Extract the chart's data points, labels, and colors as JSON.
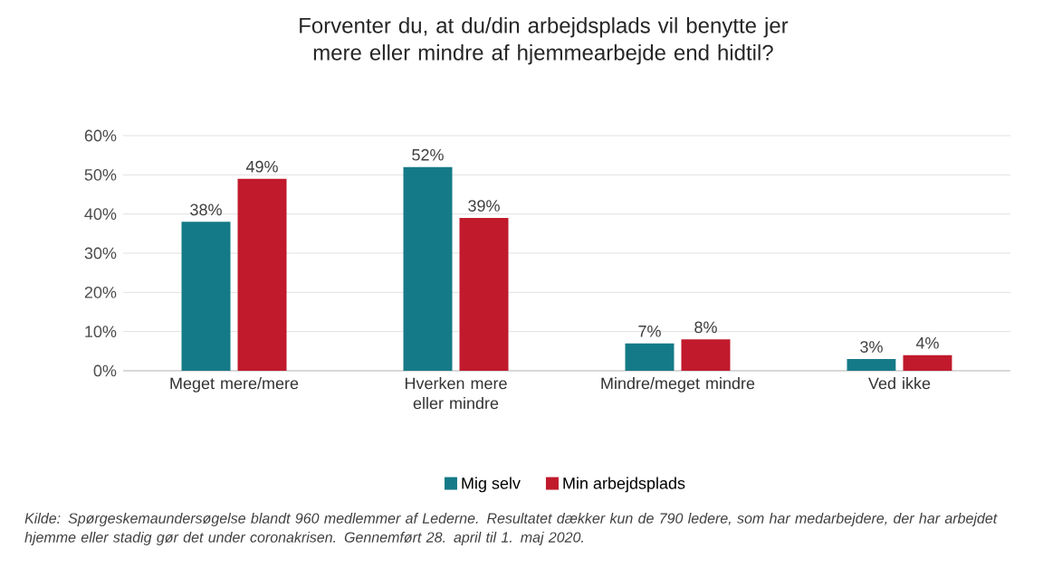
{
  "chart_data": {
    "type": "bar",
    "title": "Forventer du, at du/din arbejdsplads vil benytte jer mere eller mindre af hjemmearbejde end hidtil?",
    "categories": [
      "Meget mere/mere",
      "Hverken mere eller mindre",
      "Mindre/meget mindre",
      "Ved ikke"
    ],
    "series": [
      {
        "name": "Mig selv",
        "color": "#157a87",
        "values": [
          38,
          52,
          7,
          3
        ],
        "value_labels": [
          "38%",
          "52%",
          "7%",
          "3%"
        ]
      },
      {
        "name": "Min arbejdsplads",
        "color": "#c01a2c",
        "values": [
          49,
          39,
          8,
          4
        ],
        "value_labels": [
          "49%",
          "39%",
          "8%",
          "4%"
        ]
      }
    ],
    "ylim": [
      0,
      60
    ],
    "yticks": [
      {
        "value": 0,
        "label": "0%"
      },
      {
        "value": 10,
        "label": "10%"
      },
      {
        "value": 20,
        "label": "20%"
      },
      {
        "value": 30,
        "label": "30%"
      },
      {
        "value": 40,
        "label": "40%"
      },
      {
        "value": 50,
        "label": "50%"
      },
      {
        "value": 60,
        "label": "60%"
      }
    ],
    "grid": "y",
    "legend": "bottom",
    "annotations": [
      "Kilde: Spørgeskemaundersøgelse blandt 960 medlemmer af Lederne. Resultatet dækker kun de 790 ledere, som har medarbejdere, der har arbejdet hjemme eller stadig gør det under coronakrisen. Gennemført 28. april til 1. maj 2020."
    ]
  }
}
